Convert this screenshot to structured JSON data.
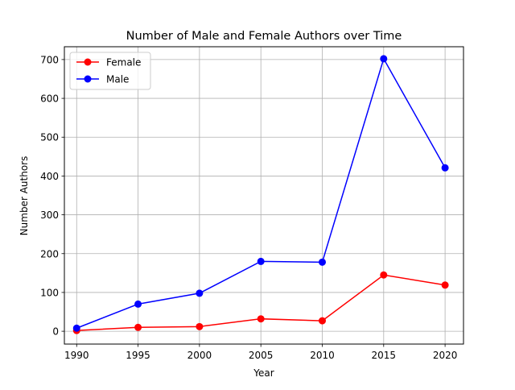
{
  "chart_data": {
    "type": "line",
    "title": "Number of Male and Female Authors over Time",
    "xlabel": "Year",
    "ylabel": "Number Authors",
    "x": [
      1990,
      1995,
      2000,
      2005,
      2010,
      2015,
      2020
    ],
    "xlim": [
      1989,
      2021.5
    ],
    "ylim": [
      -33,
      733
    ],
    "xticks": [
      1990,
      1995,
      2000,
      2005,
      2010,
      2015,
      2020
    ],
    "yticks": [
      0,
      100,
      200,
      300,
      400,
      500,
      600,
      700
    ],
    "grid": true,
    "legend_position": "top-left",
    "series": [
      {
        "name": "Female",
        "color": "#ff0000",
        "marker": "circle",
        "values": [
          2,
          10,
          12,
          32,
          27,
          145,
          119
        ]
      },
      {
        "name": "Male",
        "color": "#0000ff",
        "marker": "circle",
        "values": [
          8,
          70,
          98,
          180,
          178,
          702,
          421
        ]
      }
    ]
  }
}
